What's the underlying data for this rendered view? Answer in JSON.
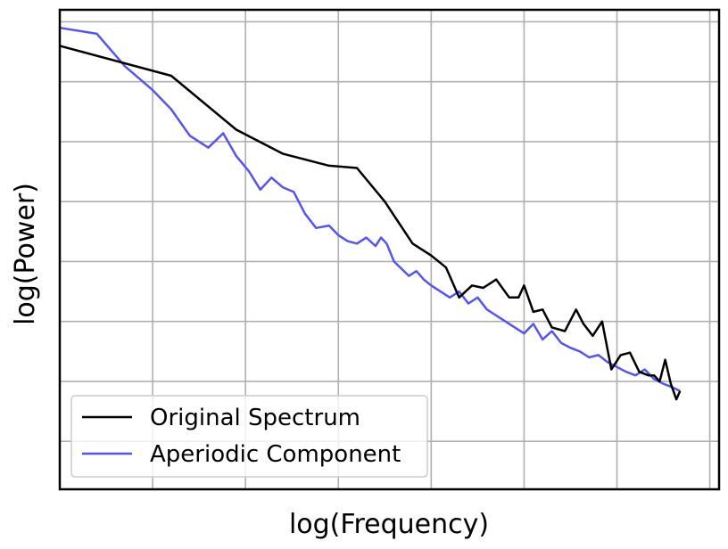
{
  "chart_data": {
    "type": "line",
    "xlabel": "log(Frequency)",
    "ylabel": "log(Power)",
    "xscale": "log",
    "yscale": "log",
    "tick_labels_shown": false,
    "grid": true,
    "legend_position": "lower-left",
    "xlim": [
      0.0,
      3.55
    ],
    "ylim": [
      -0.4,
      3.6
    ],
    "series": [
      {
        "name": "Original Spectrum",
        "color": "#000000",
        "x": [
          0.0,
          0.6,
          0.95,
          1.2,
          1.45,
          1.6,
          1.75,
          1.9,
          2.0,
          2.08,
          2.15,
          2.22,
          2.28,
          2.35,
          2.42,
          2.47,
          2.5,
          2.55,
          2.6,
          2.65,
          2.72,
          2.78,
          2.82,
          2.87,
          2.92,
          2.97,
          3.02,
          3.07,
          3.12,
          3.17,
          3.2,
          3.23,
          3.26,
          3.29,
          3.32,
          3.34
        ],
        "y": [
          3.3,
          3.05,
          2.6,
          2.4,
          2.3,
          2.28,
          2.0,
          1.65,
          1.55,
          1.45,
          1.2,
          1.3,
          1.28,
          1.35,
          1.2,
          1.2,
          1.3,
          1.08,
          1.1,
          0.95,
          0.92,
          1.1,
          0.98,
          0.88,
          1.0,
          0.6,
          0.72,
          0.74,
          0.58,
          0.55,
          0.55,
          0.5,
          0.68,
          0.48,
          0.35,
          0.42
        ]
      },
      {
        "name": "Aperiodic Component",
        "color": "#5555ee",
        "x": [
          0.0,
          0.2,
          0.35,
          0.5,
          0.6,
          0.7,
          0.8,
          0.88,
          0.95,
          1.02,
          1.08,
          1.14,
          1.2,
          1.26,
          1.32,
          1.38,
          1.45,
          1.5,
          1.55,
          1.6,
          1.65,
          1.7,
          1.73,
          1.76,
          1.8,
          1.84,
          1.88,
          1.92,
          1.96,
          2.0,
          2.05,
          2.1,
          2.15,
          2.2,
          2.25,
          2.3,
          2.35,
          2.4,
          2.45,
          2.5,
          2.55,
          2.6,
          2.65,
          2.7,
          2.75,
          2.8,
          2.85,
          2.9,
          2.95,
          3.0,
          3.05,
          3.1,
          3.15,
          3.2,
          3.25,
          3.3,
          3.34
        ],
        "y": [
          3.45,
          3.4,
          3.13,
          2.93,
          2.77,
          2.55,
          2.45,
          2.57,
          2.38,
          2.25,
          2.1,
          2.2,
          2.12,
          2.08,
          1.9,
          1.78,
          1.8,
          1.72,
          1.67,
          1.65,
          1.7,
          1.63,
          1.7,
          1.65,
          1.5,
          1.44,
          1.38,
          1.42,
          1.35,
          1.3,
          1.25,
          1.2,
          1.25,
          1.15,
          1.2,
          1.1,
          1.05,
          1.0,
          0.95,
          0.9,
          0.98,
          0.85,
          0.92,
          0.82,
          0.78,
          0.75,
          0.7,
          0.72,
          0.66,
          0.62,
          0.58,
          0.55,
          0.6,
          0.52,
          0.48,
          0.45,
          0.42
        ]
      }
    ]
  }
}
